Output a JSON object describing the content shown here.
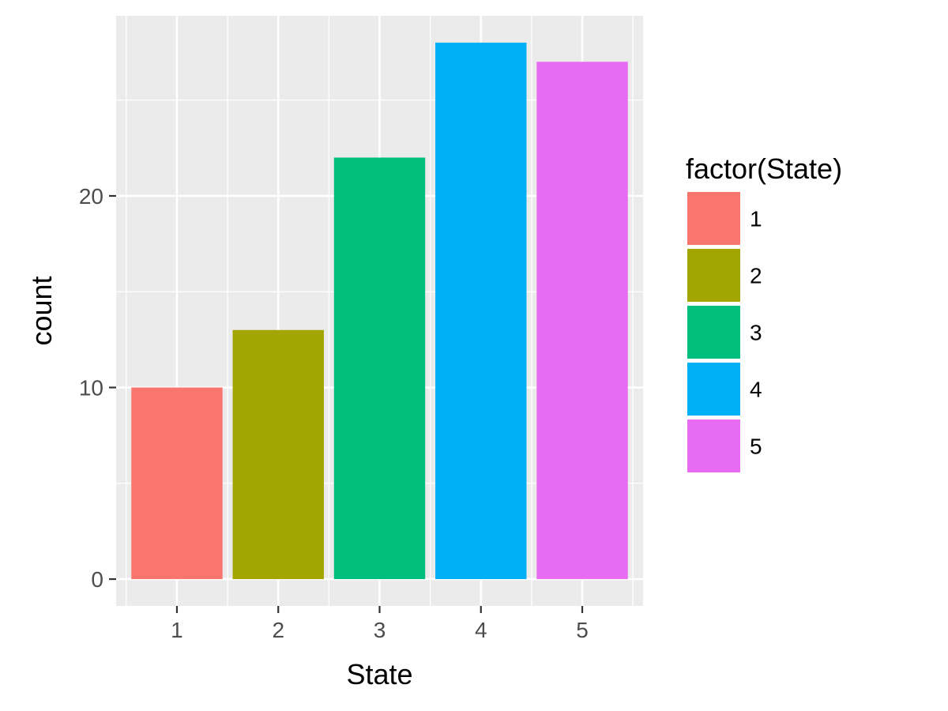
{
  "chart_data": {
    "type": "bar",
    "categories": [
      "1",
      "2",
      "3",
      "4",
      "5"
    ],
    "values": [
      10,
      13,
      22,
      28,
      27
    ],
    "colors": [
      "#F8766D",
      "#A3A500",
      "#00BF7D",
      "#00B0F6",
      "#E76BF3"
    ],
    "xlabel": "State",
    "ylabel": "count",
    "yticks": [
      0,
      10,
      20
    ],
    "ylim": [
      -1.4,
      29.4
    ],
    "panel_background": "#EBEBEB",
    "grid": true,
    "legend": {
      "title": "factor(State)",
      "position": "right",
      "labels": [
        "1",
        "2",
        "3",
        "4",
        "5"
      ]
    }
  }
}
